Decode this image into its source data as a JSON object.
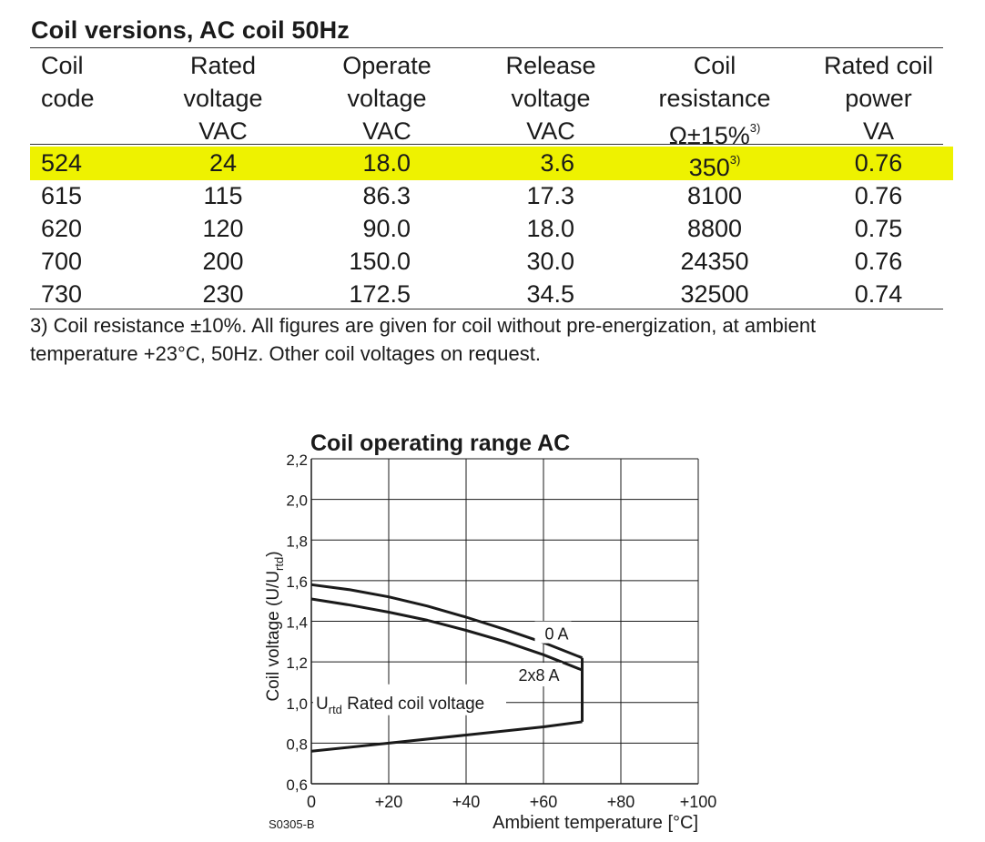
{
  "title": "Coil versions, AC coil 50Hz",
  "table": {
    "headers": [
      {
        "l1": "Coil",
        "l2": "code",
        "l3": ""
      },
      {
        "l1": "Rated",
        "l2": "voltage",
        "l3": "VAC"
      },
      {
        "l1": "Operate",
        "l2": "voltage",
        "l3": "VAC"
      },
      {
        "l1": "Release",
        "l2": "voltage",
        "l3": "VAC"
      },
      {
        "l1": "Coil",
        "l2": "resistance",
        "l3": "Ω±15%",
        "l3_sup": "3)"
      },
      {
        "l1": "Rated coil",
        "l2": "power",
        "l3": "VA"
      }
    ],
    "rows": [
      {
        "code": "524",
        "rated": "24",
        "operate": "18.0",
        "release": "3.6",
        "resistance": "350",
        "resistance_sup": "3)",
        "power": "0.76",
        "highlighted": true
      },
      {
        "code": "615",
        "rated": "115",
        "operate": "86.3",
        "release": "17.3",
        "resistance": "8100",
        "resistance_sup": "",
        "power": "0.76",
        "highlighted": false
      },
      {
        "code": "620",
        "rated": "120",
        "operate": "90.0",
        "release": "18.0",
        "resistance": "8800",
        "resistance_sup": "",
        "power": "0.75",
        "highlighted": false
      },
      {
        "code": "700",
        "rated": "200",
        "operate": "150.0",
        "release": "30.0",
        "resistance": "24350",
        "resistance_sup": "",
        "power": "0.76",
        "highlighted": false
      },
      {
        "code": "730",
        "rated": "230",
        "operate": "172.5",
        "release": "34.5",
        "resistance": "32500",
        "resistance_sup": "",
        "power": "0.74",
        "highlighted": false
      }
    ],
    "highlight_color": "#eef200"
  },
  "footnote": {
    "line1": "3) Coil resistance ±10%. All figures are given for coil without pre-energization, at ambient",
    "line2": "temperature +23°C, 50Hz. Other coil voltages on request."
  },
  "chart_data": {
    "type": "line",
    "title": "Coil operating range AC",
    "xlabel": "Ambient temperature [°C]",
    "ylabel_main": "Coil voltage (U/U",
    "ylabel_sub": "rtd",
    "ylabel_end": ")",
    "xlim": [
      0,
      100
    ],
    "ylim": [
      0.6,
      2.2
    ],
    "x_ticks": [
      "0",
      "+20",
      "+40",
      "+60",
      "+80",
      "+100"
    ],
    "x_tick_values": [
      0,
      20,
      40,
      60,
      80,
      100
    ],
    "y_ticks": [
      "0,6",
      "0,8",
      "1,0",
      "1,2",
      "1,4",
      "1,6",
      "1,8",
      "2,0",
      "2,2"
    ],
    "y_tick_values": [
      0.6,
      0.8,
      1.0,
      1.2,
      1.4,
      1.6,
      1.8,
      2.0,
      2.2
    ],
    "grid": true,
    "series": [
      {
        "name": "0 A",
        "x": [
          0,
          10,
          20,
          30,
          40,
          50,
          60,
          70
        ],
        "y": [
          1.58,
          1.555,
          1.52,
          1.475,
          1.42,
          1.36,
          1.295,
          1.22
        ]
      },
      {
        "name": "2x8 A",
        "x": [
          0,
          10,
          20,
          30,
          40,
          50,
          60,
          70
        ],
        "y": [
          1.51,
          1.48,
          1.445,
          1.405,
          1.355,
          1.3,
          1.235,
          1.16
        ]
      },
      {
        "name": "",
        "x": [
          0,
          20,
          40,
          60,
          70
        ],
        "y": [
          0.76,
          0.8,
          0.84,
          0.88,
          0.905
        ]
      },
      {
        "name": "",
        "x": [
          70,
          70
        ],
        "y": [
          0.905,
          1.22
        ]
      }
    ],
    "annotation_main": "U",
    "annotation_sub": "rtd",
    "annotation_rest": " Rated coil voltage",
    "figure_code": "S0305-B"
  }
}
